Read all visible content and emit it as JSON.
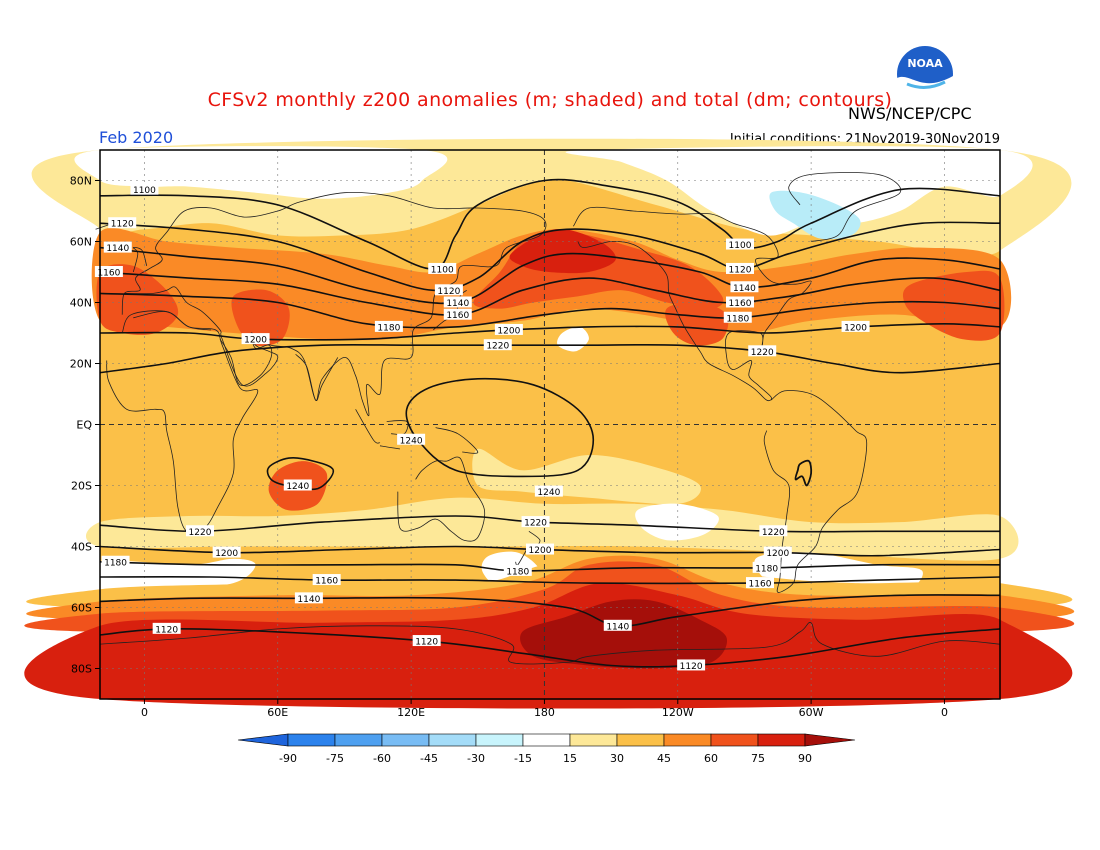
{
  "header": {
    "title": "CFSv2 monthly z200 anomalies (m; shaded) and total (dm; contours)",
    "agency": "NWS/NCEP/CPC",
    "month": "Feb 2020",
    "initial_conditions": "Initial conditions: 21Nov2019-30Nov2019",
    "logo_text": "NOAA"
  },
  "map": {
    "lat_labels": [
      {
        "lat": 80,
        "text": "80N"
      },
      {
        "lat": 60,
        "text": "60N"
      },
      {
        "lat": 40,
        "text": "40N"
      },
      {
        "lat": 20,
        "text": "20N"
      },
      {
        "lat": 0,
        "text": "EQ"
      },
      {
        "lat": -20,
        "text": "20S"
      },
      {
        "lat": -40,
        "text": "40S"
      },
      {
        "lat": -60,
        "text": "60S"
      },
      {
        "lat": -80,
        "text": "80S"
      }
    ],
    "lon_labels": [
      {
        "lon": 0,
        "text": "0"
      },
      {
        "lon": 60,
        "text": "60E"
      },
      {
        "lon": 120,
        "text": "120E"
      },
      {
        "lon": 180,
        "text": "180"
      },
      {
        "lon": 240,
        "text": "120W"
      },
      {
        "lon": 300,
        "text": "60W"
      },
      {
        "lon": 360,
        "text": "0"
      }
    ],
    "lon_range": [
      -20,
      385
    ],
    "lat_range": [
      -90,
      90
    ],
    "anomaly_colors": {
      "w": "#ffffff",
      "y1": "#fde898",
      "y2": "#fbc048",
      "o": "#fa8a26",
      "ro": "#f0521c",
      "r": "#d8200e",
      "dr": "#a50f0a",
      "lb": "#b8ecf8"
    },
    "contour_labels": [
      {
        "lon": 0,
        "lat": 77,
        "text": "1100"
      },
      {
        "lon": -10,
        "lat": 66,
        "text": "1120"
      },
      {
        "lon": -12,
        "lat": 58,
        "text": "1140"
      },
      {
        "lon": -16,
        "lat": 50,
        "text": "1160"
      },
      {
        "lon": 50,
        "lat": 28,
        "text": "1200"
      },
      {
        "lon": 134,
        "lat": 51,
        "text": "1100"
      },
      {
        "lon": 137,
        "lat": 44,
        "text": "1120"
      },
      {
        "lon": 141,
        "lat": 40,
        "text": "1140"
      },
      {
        "lon": 141,
        "lat": 36,
        "text": "1160"
      },
      {
        "lon": 110,
        "lat": 32,
        "text": "1180"
      },
      {
        "lon": 164,
        "lat": 31,
        "text": "1200"
      },
      {
        "lon": 159,
        "lat": 26,
        "text": "1220"
      },
      {
        "lon": 268,
        "lat": 59,
        "text": "1100"
      },
      {
        "lon": 268,
        "lat": 51,
        "text": "1120"
      },
      {
        "lon": 270,
        "lat": 45,
        "text": "1140"
      },
      {
        "lon": 268,
        "lat": 40,
        "text": "1160"
      },
      {
        "lon": 267,
        "lat": 35,
        "text": "1180"
      },
      {
        "lon": 320,
        "lat": 32,
        "text": "1200"
      },
      {
        "lon": 278,
        "lat": 24,
        "text": "1220"
      },
      {
        "lon": 120,
        "lat": -5,
        "text": "1240"
      },
      {
        "lon": 69,
        "lat": -20,
        "text": "1240"
      },
      {
        "lon": 182,
        "lat": -22,
        "text": "1240"
      },
      {
        "lon": 25,
        "lat": -35,
        "text": "1220"
      },
      {
        "lon": 176,
        "lat": -32,
        "text": "1220"
      },
      {
        "lon": 283,
        "lat": -35,
        "text": "1220"
      },
      {
        "lon": 37,
        "lat": -42,
        "text": "1200"
      },
      {
        "lon": 178,
        "lat": -41,
        "text": "1200"
      },
      {
        "lon": 285,
        "lat": -42,
        "text": "1200"
      },
      {
        "lon": -13,
        "lat": -45,
        "text": "1180"
      },
      {
        "lon": 168,
        "lat": -48,
        "text": "1180"
      },
      {
        "lon": 280,
        "lat": -47,
        "text": "1180"
      },
      {
        "lon": 82,
        "lat": -51,
        "text": "1160"
      },
      {
        "lon": 277,
        "lat": -52,
        "text": "1160"
      },
      {
        "lon": 74,
        "lat": -57,
        "text": "1140"
      },
      {
        "lon": 213,
        "lat": -66,
        "text": "1140"
      },
      {
        "lon": 10,
        "lat": -67,
        "text": "1120"
      },
      {
        "lon": 127,
        "lat": -71,
        "text": "1120"
      },
      {
        "lon": 246,
        "lat": -79,
        "text": "1120"
      }
    ]
  },
  "colorbar": {
    "labels": [
      "-90",
      "-75",
      "-60",
      "-45",
      "-30",
      "-15",
      "15",
      "30",
      "45",
      "60",
      "75",
      "90"
    ],
    "colors": [
      "#1e64dc",
      "#2c82ec",
      "#4ea0f0",
      "#78bcf4",
      "#a4dcf8",
      "#c8f4fc",
      "#ffffff",
      "#fde898",
      "#fbc048",
      "#fa8a26",
      "#f0521c",
      "#d8200e",
      "#a50f0a"
    ]
  }
}
